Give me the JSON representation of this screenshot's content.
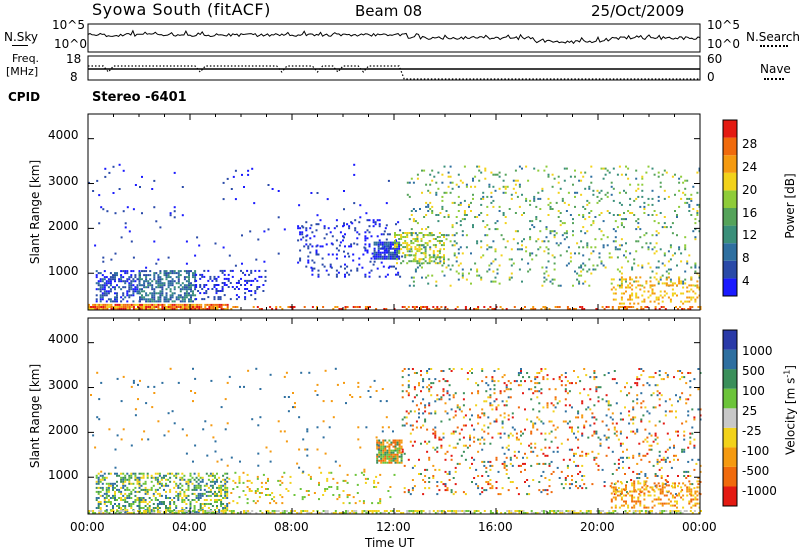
{
  "header": {
    "title": "Syowa South (fitACF)",
    "beam": "Beam 08",
    "date": "25/Oct/2009"
  },
  "status_panel": {
    "nsky_label": "N.Sky",
    "nsearch_label": "N.Search",
    "freq_label": "Freq.",
    "freq_unit": "[MHz]",
    "nave_label": "Nave",
    "cpid_label": "CPID",
    "cpid_value": "Stereo -6401",
    "noise_ticks_left": [
      "10^5",
      "10^0"
    ],
    "noise_ticks_right": [
      "10^5",
      "10^0"
    ],
    "freq_ticks": [
      "18",
      "8"
    ],
    "nave_ticks": [
      "60",
      "0"
    ]
  },
  "chart_data": [
    {
      "type": "heatmap",
      "panel": "power",
      "ylabel": "Slant Range [km]",
      "ylim": [
        180,
        4550
      ],
      "yticks": [
        "4000",
        "3000",
        "2000",
        "1000"
      ],
      "xlim": [
        0,
        24
      ],
      "colorbar_label": "Power [dB]",
      "colorbar_ticks": [
        "28",
        "24",
        "20",
        "16",
        "12",
        "8",
        "4"
      ],
      "colorscale": [
        "#1a1aff",
        "#2a4aa8",
        "#2e6fa0",
        "#3a8f7a",
        "#55a35a",
        "#8fcc3a",
        "#f2d21a",
        "#f59a10",
        "#f06a0c",
        "#e41a12"
      ],
      "regions": [
        {
          "t": [
            0.3,
            2.0
          ],
          "r": [
            350,
            1050
          ],
          "density": 0.55,
          "colors": [
            "#2a4aa8",
            "#2e6fa0",
            "#1a1aff"
          ]
        },
        {
          "t": [
            2.0,
            4.2
          ],
          "r": [
            350,
            1050
          ],
          "density": 0.6,
          "colors": [
            "#2a4aa8",
            "#2e6fa0",
            "#3a8f7a"
          ]
        },
        {
          "t": [
            4.2,
            7.0
          ],
          "r": [
            400,
            1050
          ],
          "density": 0.25,
          "colors": [
            "#2a4aa8",
            "#1a1aff"
          ]
        },
        {
          "t": [
            0.0,
            5.5
          ],
          "r": [
            180,
            290
          ],
          "density": 0.9,
          "colors": [
            "#e41a12",
            "#f06a0c",
            "#f59a10",
            "#f2d21a"
          ]
        },
        {
          "t": [
            5.5,
            24.0
          ],
          "r": [
            180,
            250
          ],
          "density": 0.35,
          "colors": [
            "#f06a0c",
            "#e41a12",
            "#f59a10"
          ]
        },
        {
          "t": [
            8.2,
            12.3
          ],
          "r": [
            900,
            2200
          ],
          "density": 0.12,
          "colors": [
            "#2a4aa8",
            "#1a1aff"
          ]
        },
        {
          "t": [
            11.2,
            12.2
          ],
          "r": [
            1300,
            1700
          ],
          "density": 0.85,
          "colors": [
            "#2a4aa8",
            "#1a1aff",
            "#2e6fa0"
          ]
        },
        {
          "t": [
            12.0,
            14.0
          ],
          "r": [
            1200,
            1900
          ],
          "density": 0.45,
          "colors": [
            "#f2d21a",
            "#8fcc3a",
            "#55a35a"
          ]
        },
        {
          "t": [
            12.5,
            24.0
          ],
          "r": [
            700,
            3400
          ],
          "density": 0.1,
          "colors": [
            "#3a8f7a",
            "#55a35a",
            "#8fcc3a",
            "#2e6fa0",
            "#f2d21a"
          ]
        },
        {
          "t": [
            20.5,
            24.0
          ],
          "r": [
            300,
            900
          ],
          "density": 0.25,
          "colors": [
            "#f59a10",
            "#f2d21a"
          ]
        },
        {
          "t": [
            0.0,
            12.0
          ],
          "r": [
            1100,
            3400
          ],
          "density": 0.02,
          "colors": [
            "#2a4aa8",
            "#1a1aff"
          ]
        }
      ]
    },
    {
      "type": "heatmap",
      "panel": "velocity",
      "ylabel": "Slant Range [km]",
      "xlabel": "Time UT",
      "ylim": [
        180,
        4550
      ],
      "yticks": [
        "4000",
        "3000",
        "2000",
        "1000"
      ],
      "xlim": [
        0,
        24
      ],
      "xticks": [
        "00:00",
        "04:00",
        "08:00",
        "12:00",
        "16:00",
        "20:00",
        "00:00"
      ],
      "colorbar_label": "Velocity [m s^-1]",
      "colorbar_ticks": [
        "1000",
        "500",
        "100",
        "25",
        "-25",
        "-100",
        "-500",
        "-1000"
      ],
      "colorscale": [
        "#2a3aa8",
        "#2e6fa0",
        "#3a8f5a",
        "#6cc43a",
        "#c8c8c8",
        "#f2d21a",
        "#f59a10",
        "#f06a0c",
        "#e41a12"
      ],
      "regions": [
        {
          "t": [
            0.3,
            5.5
          ],
          "r": [
            200,
            1100
          ],
          "density": 0.45,
          "colors": [
            "#6cc43a",
            "#3a8f5a",
            "#2e6fa0",
            "#f2d21a"
          ]
        },
        {
          "t": [
            0.0,
            24.0
          ],
          "r": [
            180,
            260
          ],
          "density": 0.6,
          "colors": [
            "#6cc43a",
            "#f2d21a",
            "#c8c8c8"
          ]
        },
        {
          "t": [
            5.5,
            12.0
          ],
          "r": [
            400,
            1100
          ],
          "density": 0.12,
          "colors": [
            "#f2d21a",
            "#f59a10",
            "#6cc43a"
          ]
        },
        {
          "t": [
            11.3,
            12.3
          ],
          "r": [
            1300,
            1800
          ],
          "density": 0.85,
          "colors": [
            "#f06a0c",
            "#f59a10",
            "#3a8f5a",
            "#6cc43a"
          ]
        },
        {
          "t": [
            12.3,
            24.0
          ],
          "r": [
            600,
            3400
          ],
          "density": 0.11,
          "colors": [
            "#f59a10",
            "#f06a0c",
            "#2e6fa0",
            "#3a8f5a",
            "#e41a12",
            "#f2d21a"
          ]
        },
        {
          "t": [
            20.5,
            24.0
          ],
          "r": [
            300,
            900
          ],
          "density": 0.3,
          "colors": [
            "#f59a10",
            "#f2d21a",
            "#f06a0c"
          ]
        },
        {
          "t": [
            0.0,
            12.0
          ],
          "r": [
            1100,
            3400
          ],
          "density": 0.02,
          "colors": [
            "#2e6fa0",
            "#f59a10"
          ]
        }
      ]
    }
  ]
}
